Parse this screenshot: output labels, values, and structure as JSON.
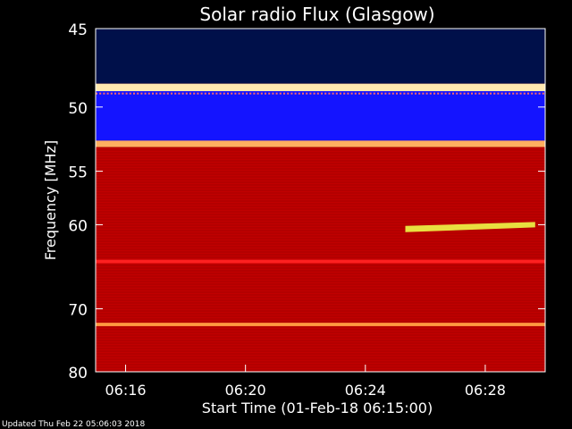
{
  "chart_data": {
    "type": "heatmap",
    "title": "Solar radio Flux (Glasgow)",
    "xlabel": "Start Time (01-Feb-18 06:15:00)",
    "ylabel": "Frequency [MHz]",
    "xlim": [
      "06:15:00",
      "06:30:00"
    ],
    "ylim": [
      45,
      80
    ],
    "y_scale": "reciprocal",
    "x_ticks": [
      "06:16",
      "06:20",
      "06:24",
      "06:28"
    ],
    "y_ticks": [
      45,
      50,
      55,
      60,
      70,
      80
    ],
    "background_color": "#c00000",
    "bands": [
      {
        "from": 45.0,
        "to": 48.4,
        "color": "#00104a"
      },
      {
        "from": 48.4,
        "to": 48.9,
        "color": "#ffe9b0"
      },
      {
        "from": 48.9,
        "to": 52.5,
        "color": "#1414ff"
      },
      {
        "from": 52.5,
        "to": 53.0,
        "color": "#ffb060"
      },
      {
        "from": 63.8,
        "to": 64.2,
        "color": "#ff2020"
      },
      {
        "from": 72.0,
        "to": 72.5,
        "color": "#ff9a40"
      }
    ],
    "features": [
      {
        "label": "burst",
        "time_start": "06:25:20",
        "time_end": "06:29:40",
        "freq_start": 60.4,
        "freq_end": 60.0,
        "color": "#e8e040"
      }
    ],
    "footer": "Updated Thu Feb 22 05:06:03 2018"
  }
}
